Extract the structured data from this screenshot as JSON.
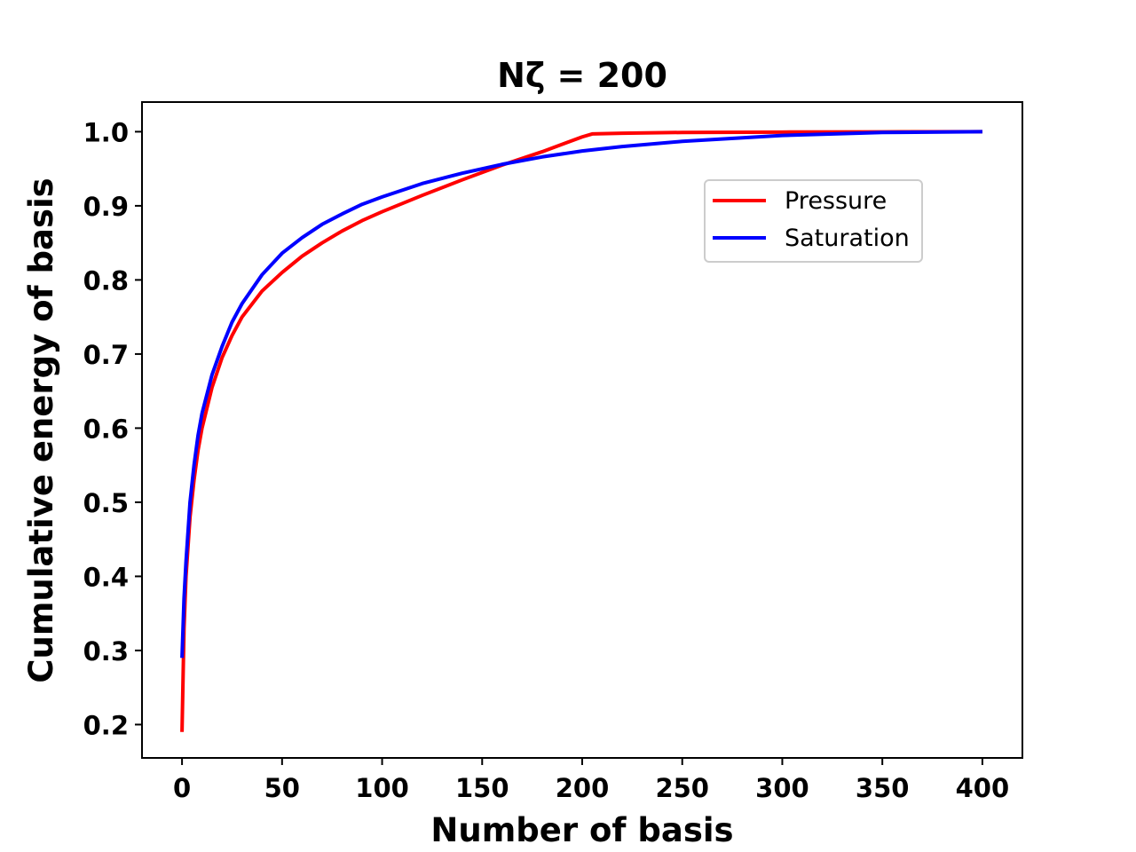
{
  "chart_data": {
    "type": "line",
    "title": "Nζ = 200",
    "xlabel": "Number of basis",
    "ylabel": "Cumulative energy of basis",
    "xlim": [
      -20,
      420
    ],
    "ylim": [
      0.155,
      1.04
    ],
    "xticks": [
      0,
      50,
      100,
      150,
      200,
      250,
      300,
      350,
      400
    ],
    "xtick_labels": [
      "0",
      "50",
      "100",
      "150",
      "200",
      "250",
      "300",
      "350",
      "400"
    ],
    "yticks": [
      0.2,
      0.3,
      0.4,
      0.5,
      0.6,
      0.7,
      0.8,
      0.9,
      1.0
    ],
    "ytick_labels": [
      "0.2",
      "0.3",
      "0.4",
      "0.5",
      "0.6",
      "0.7",
      "0.8",
      "0.9",
      "1.0"
    ],
    "grid": false,
    "legend_position": "upper-right",
    "series": [
      {
        "name": "Pressure",
        "color": "#ff0000",
        "x": [
          0,
          1,
          2,
          4,
          6,
          8,
          10,
          15,
          20,
          25,
          30,
          40,
          50,
          60,
          70,
          80,
          90,
          100,
          120,
          140,
          160,
          180,
          200,
          205,
          220,
          250,
          300,
          350,
          400
        ],
        "y": [
          0.19,
          0.33,
          0.4,
          0.48,
          0.53,
          0.57,
          0.6,
          0.655,
          0.695,
          0.725,
          0.75,
          0.785,
          0.81,
          0.832,
          0.85,
          0.866,
          0.88,
          0.892,
          0.914,
          0.935,
          0.955,
          0.973,
          0.993,
          0.997,
          0.998,
          0.999,
          0.9995,
          0.9998,
          1.0
        ]
      },
      {
        "name": "Saturation",
        "color": "#0000ff",
        "x": [
          0,
          1,
          2,
          4,
          6,
          8,
          10,
          15,
          20,
          25,
          30,
          40,
          50,
          60,
          70,
          80,
          90,
          100,
          120,
          140,
          160,
          180,
          200,
          220,
          250,
          300,
          350,
          400
        ],
        "y": [
          0.29,
          0.37,
          0.42,
          0.5,
          0.55,
          0.59,
          0.62,
          0.672,
          0.71,
          0.743,
          0.768,
          0.807,
          0.836,
          0.857,
          0.875,
          0.889,
          0.902,
          0.912,
          0.93,
          0.944,
          0.956,
          0.966,
          0.974,
          0.98,
          0.987,
          0.995,
          0.999,
          1.0
        ]
      }
    ]
  }
}
